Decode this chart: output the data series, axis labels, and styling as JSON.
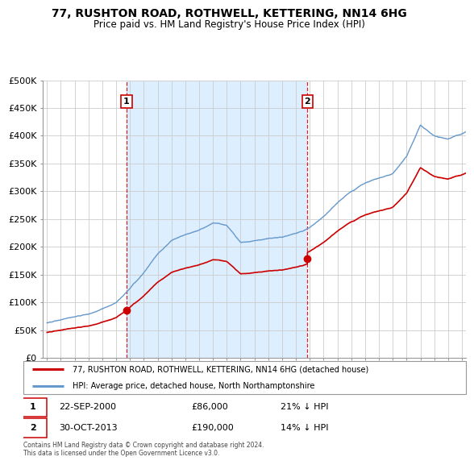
{
  "title": "77, RUSHTON ROAD, ROTHWELL, KETTERING, NN14 6HG",
  "subtitle": "Price paid vs. HM Land Registry's House Price Index (HPI)",
  "property_label": "77, RUSHTON ROAD, ROTHWELL, KETTERING, NN14 6HG (detached house)",
  "hpi_label": "HPI: Average price, detached house, North Northamptonshire",
  "footnote": "Contains HM Land Registry data © Crown copyright and database right 2024.\nThis data is licensed under the Open Government Licence v3.0.",
  "property_color": "#cc0000",
  "hpi_color": "#6699cc",
  "sale1_year": 2000.75,
  "sale1_price": 86000,
  "sale1_date": "22-SEP-2000",
  "sale1_note": "21% ↓ HPI",
  "sale2_year": 2013.83,
  "sale2_price": 190000,
  "sale2_date": "30-OCT-2013",
  "sale2_note": "14% ↓ HPI",
  "shade_color": "#ddeeff",
  "ylim": [
    0,
    500000
  ],
  "yticks": [
    0,
    50000,
    100000,
    150000,
    200000,
    250000,
    300000,
    350000,
    400000,
    450000,
    500000
  ],
  "ytick_labels": [
    "£0",
    "£50K",
    "£100K",
    "£150K",
    "£200K",
    "£250K",
    "£300K",
    "£350K",
    "£400K",
    "£450K",
    "£500K"
  ],
  "xmin": 1994.7,
  "xmax": 2025.3,
  "grid_color": "#cccccc"
}
